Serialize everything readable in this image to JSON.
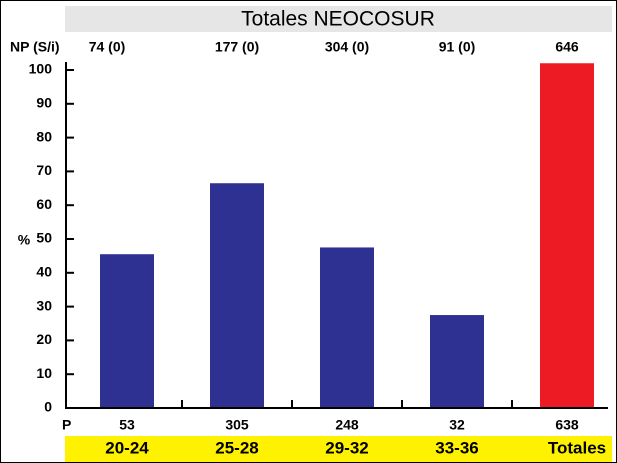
{
  "chart_data": {
    "type": "bar",
    "title": "Totales NEOCOSUR",
    "y_label": "%",
    "np_label": "NP (S/i)",
    "np_values": [
      "74 (0)",
      "177 (0)",
      "304 (0)",
      "91 (0)",
      "646"
    ],
    "p_label": "P",
    "p_values": [
      "53",
      "305",
      "248",
      "32",
      "638"
    ],
    "categories": [
      "20-24",
      "25-28",
      "29-32",
      "33-36",
      "Totales"
    ],
    "values": [
      45.5,
      66.5,
      47.5,
      27.5,
      102
    ],
    "colors": [
      "#2e3192",
      "#2e3192",
      "#2e3192",
      "#2e3192",
      "#ed1c24"
    ],
    "ylim": [
      0,
      100
    ],
    "yticks": [
      0,
      10,
      20,
      30,
      40,
      50,
      60,
      70,
      80,
      90,
      100
    ]
  }
}
